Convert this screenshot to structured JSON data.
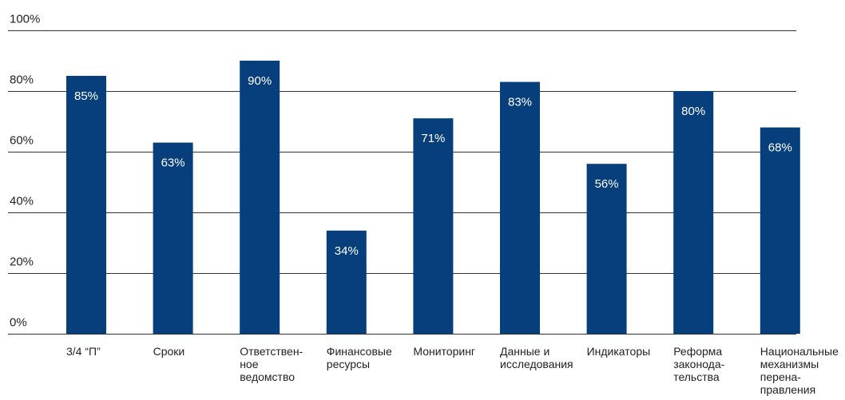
{
  "chart_data": {
    "type": "bar",
    "categories": [
      [
        "3/4 “П”"
      ],
      [
        "Сроки"
      ],
      [
        "Ответствен-",
        "ное",
        "ведомство"
      ],
      [
        "Финансовые",
        "ресурсы"
      ],
      [
        "Мониторинг"
      ],
      [
        "Данные и",
        "исследования"
      ],
      [
        "Индикаторы"
      ],
      [
        "Реформа",
        "законода-",
        "тельства"
      ],
      [
        "Национальные",
        "механизмы",
        "перена-",
        "правления"
      ]
    ],
    "values": [
      85,
      63,
      90,
      34,
      71,
      83,
      56,
      80,
      68
    ],
    "data_labels": [
      "85%",
      "63%",
      "90%",
      "34%",
      "71%",
      "83%",
      "56%",
      "80%",
      "68%"
    ],
    "yticks": [
      {
        "value": 0,
        "label": "0%"
      },
      {
        "value": 20,
        "label": "20%"
      },
      {
        "value": 40,
        "label": "40%"
      },
      {
        "value": 60,
        "label": "60%"
      },
      {
        "value": 80,
        "label": "80%"
      },
      {
        "value": 100,
        "label": "100%"
      }
    ],
    "ylim": [
      0,
      100
    ],
    "grid": true,
    "bar_color": "#063f7b",
    "title": "",
    "xlabel": "",
    "ylabel": ""
  }
}
